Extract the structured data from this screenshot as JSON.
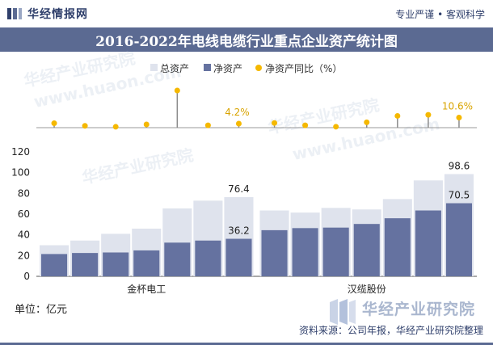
{
  "header": {
    "brand_name": "华经情报网",
    "slogan": "专业严谨 • 客观科学",
    "title": "2016-2022年电线电缆行业重点企业资产统计图"
  },
  "footer": {
    "unit": "单位：亿元",
    "watermark_text": "华经产业研究院",
    "source": "资料来源：公司年报，华经产业研究院整理"
  },
  "background_watermarks": [
    "华经产业研究院",
    "www.huaon.com"
  ],
  "colors": {
    "total_assets": "#dfe3ed",
    "net_assets": "#6572a0",
    "growth_marker": "#f5b800",
    "stem": "#8a8a8a",
    "header_band": "#5b6a92"
  },
  "chart_data": {
    "type": "bar",
    "legend_position": "top-center",
    "legend": [
      "总资产",
      "净资产",
      "净资产同比（%）"
    ],
    "ylim": [
      0,
      120
    ],
    "yticks": [
      0,
      20,
      40,
      60,
      80,
      100,
      120
    ],
    "grid": false,
    "groups": [
      {
        "name": "金杯电工",
        "total_assets": [
          30,
          34.5,
          41,
          46,
          65.5,
          73,
          76.4
        ],
        "net_assets": [
          21.5,
          22.5,
          23,
          25,
          32.5,
          34.5,
          36.2
        ],
        "labels": {
          "total_last": "76.4",
          "net_last": "36.2"
        }
      },
      {
        "name": "汉缆股份",
        "total_assets": [
          63.5,
          61.5,
          66,
          64.5,
          74.5,
          92.5,
          98.6
        ],
        "net_assets": [
          44.5,
          46.5,
          47,
          50.5,
          56,
          63.5,
          70.5
        ],
        "labels": {
          "total_last": "98.6",
          "net_last": "70.5"
        }
      }
    ],
    "growth_pct": [
      [
        4.6,
        1.9,
        0.9,
        3.4,
        38.9,
        2.4,
        4.2
      ],
      [
        4.9,
        2.4,
        1.0,
        5.6,
        12.3,
        13.4,
        10.6
      ]
    ],
    "growth_labels": [
      "4.2%",
      "10.6%"
    ]
  }
}
